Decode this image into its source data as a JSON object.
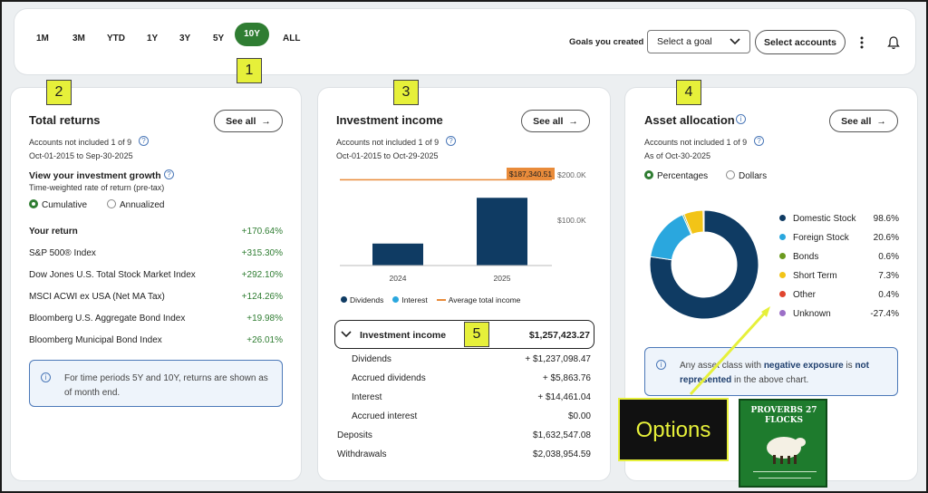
{
  "timeframes": [
    "1M",
    "3M",
    "YTD",
    "1Y",
    "3Y",
    "5Y",
    "10Y",
    "ALL"
  ],
  "selected_timeframe": "10Y",
  "goals_label": "Goals you created",
  "goal_select_placeholder": "Select a goal",
  "select_accounts_label": "Select accounts",
  "callouts": [
    "1",
    "2",
    "3",
    "4",
    "5"
  ],
  "total_returns": {
    "title": "Total returns",
    "see_all": "See all",
    "accounts_note": "Accounts not included 1 of 9",
    "date_range": "Oct-01-2015 to Sep-30-2025",
    "growth_title": "View your investment growth",
    "growth_sub": "Time-weighted rate of return (pre-tax)",
    "radio_cumulative": "Cumulative",
    "radio_annualized": "Annualized",
    "rows": [
      {
        "label": "Your return",
        "value": "+170.64%"
      },
      {
        "label": "S&P 500® Index",
        "value": "+315.30%"
      },
      {
        "label": "Dow Jones U.S. Total Stock Market Index",
        "value": "+292.10%"
      },
      {
        "label": "MSCI ACWI ex USA (Net MA Tax)",
        "value": "+124.26%"
      },
      {
        "label": "Bloomberg U.S. Aggregate Bond Index",
        "value": "+19.98%"
      },
      {
        "label": "Bloomberg Municipal Bond Index",
        "value": "+26.01%"
      }
    ],
    "info_text": "For time periods 5Y and 10Y, returns are shown as of month end."
  },
  "investment_income": {
    "title": "Investment income",
    "see_all": "See all",
    "accounts_note": "Accounts not included 1 of 9",
    "date_range": "Oct-01-2015 to Oct-29-2025",
    "avg_label": "$187,340.51",
    "y_ticks": [
      "$200.0K",
      "$100.0K"
    ],
    "legend": [
      "Dividends",
      "Interest",
      "Average total income"
    ],
    "summary_label": "Investment income",
    "summary_value": "$1,257,423.27",
    "rows": [
      {
        "label": "Dividends",
        "value": "+ $1,237,098.47"
      },
      {
        "label": "Accrued dividends",
        "value": "+ $5,863.76"
      },
      {
        "label": "Interest",
        "value": "+ $14,461.04"
      },
      {
        "label": "Accrued interest",
        "value": "$0.00"
      },
      {
        "label": "Deposits",
        "value": "$1,632,547.08"
      },
      {
        "label": "Withdrawals",
        "value": "$2,038,954.59"
      }
    ]
  },
  "chart_data": {
    "type": "bar",
    "categories": [
      "2024",
      "2025"
    ],
    "series": [
      {
        "name": "Dividends",
        "values": [
          48000,
          148000
        ]
      }
    ],
    "average_total_income": 187340.51,
    "ylim": [
      0,
      200000
    ]
  },
  "asset_allocation": {
    "title": "Asset allocation",
    "see_all": "See all",
    "accounts_note": "Accounts not included 1 of 9",
    "as_of": "As of Oct-30-2025",
    "radio_percentages": "Percentages",
    "radio_dollars": "Dollars",
    "items": [
      {
        "label": "Domestic Stock",
        "value": "98.6%",
        "color": "#0f3b63"
      },
      {
        "label": "Foreign Stock",
        "value": "20.6%",
        "color": "#2aa7de"
      },
      {
        "label": "Bonds",
        "value": "0.6%",
        "color": "#6b9a1f"
      },
      {
        "label": "Short Term",
        "value": "7.3%",
        "color": "#f2c417"
      },
      {
        "label": "Other",
        "value": "0.4%",
        "color": "#e0452f"
      },
      {
        "label": "Unknown",
        "value": "-27.4%",
        "color": "#9c6fc7"
      }
    ],
    "donut_values": [
      98.6,
      20.6,
      0.6,
      7.3,
      0.4
    ],
    "info_pre": "Any asset class with",
    "info_bold1": "negative exposure",
    "info_mid": "is",
    "info_bold2": "not represented",
    "info_post": "in the above chart."
  },
  "options_label": "Options",
  "logo_text": "PROVERBS 27 FLOCKS"
}
